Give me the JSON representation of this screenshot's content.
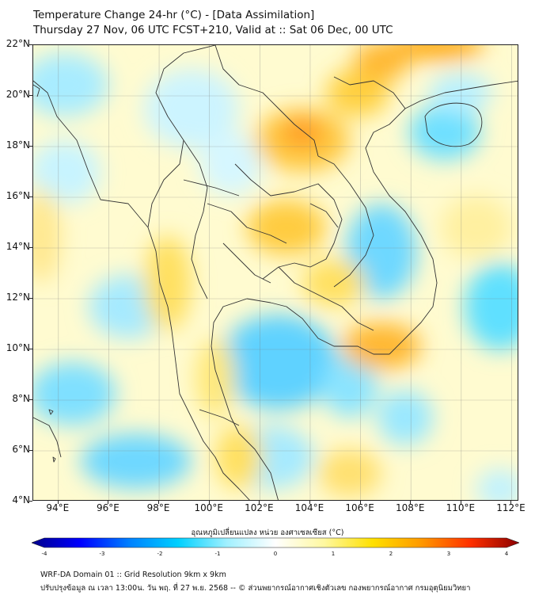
{
  "title": {
    "line1": "Temperature Change 24-hr (°C) - [Data Assimilation]",
    "line2": "Thursday 27 Nov, 06 UTC FCST+210, Valid at :: Sat 06 Dec, 00 UTC"
  },
  "map": {
    "lat_range": [
      4,
      22
    ],
    "lon_range": [
      93,
      112.3
    ],
    "lat_ticks": [
      "22°N",
      "20°N",
      "18°N",
      "16°N",
      "14°N",
      "12°N",
      "10°N",
      "8°N",
      "6°N",
      "4°N"
    ],
    "lon_ticks": [
      "94°E",
      "96°E",
      "98°E",
      "100°E",
      "102°E",
      "104°E",
      "106°E",
      "108°E",
      "110°E",
      "112°E"
    ],
    "background_color": "#fffbd0",
    "coastline_color": "#333333",
    "grid": true
  },
  "colorbar": {
    "title": "อุณหภูมิเปลี่ยนแปลง หน่วย องศาเซลเซียส (°C)",
    "range": [
      -4,
      4
    ],
    "tick_labels": [
      "-4",
      "-3",
      "-2",
      "-1",
      "0",
      "1",
      "2",
      "3",
      "4"
    ],
    "colors": [
      "#00008b",
      "#0000ff",
      "#0080ff",
      "#00d0ff",
      "#a0f0ff",
      "#ffffff",
      "#fff8a0",
      "#ffe000",
      "#ff9800",
      "#ff3000",
      "#8b0000"
    ]
  },
  "footer": {
    "line1": "WRF-DA Domain 01 :: Grid Resolution 9km x 9km",
    "line2": "ปรับปรุงข้อมูล ณ เวลา 13:00น. วัน พฤ. ที่ 27 พ.ย. 2568 -- © ส่วนพยากรณ์อากาศเชิงตัวเลข กองพยากรณ์อากาศ กรมอุตุนิยมวิทยา"
  }
}
